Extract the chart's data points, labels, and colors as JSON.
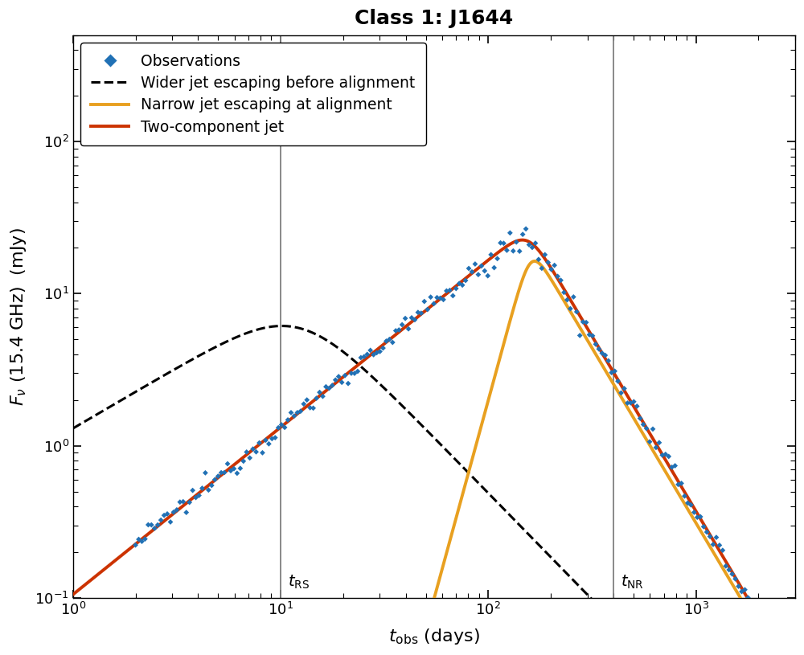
{
  "title": "Class 1: J1644",
  "xlabel": "$t_\\mathrm{obs}$ (days)",
  "ylabel": "$F_\\nu$ (15.4 GHz)  (mJy)",
  "xlim": [
    1,
    3000
  ],
  "ylim": [
    0.1,
    500
  ],
  "t_RS": 10.0,
  "t_NR": 400.0,
  "wide_jet_color": "#000000",
  "narrow_jet_color": "#E8A020",
  "two_comp_color": "#CC3300",
  "obs_color": "#2171b5",
  "vline_color": "#808080",
  "legend_fontsize": 13.5,
  "axis_fontsize": 16,
  "title_fontsize": 18,
  "tick_labelsize": 13
}
